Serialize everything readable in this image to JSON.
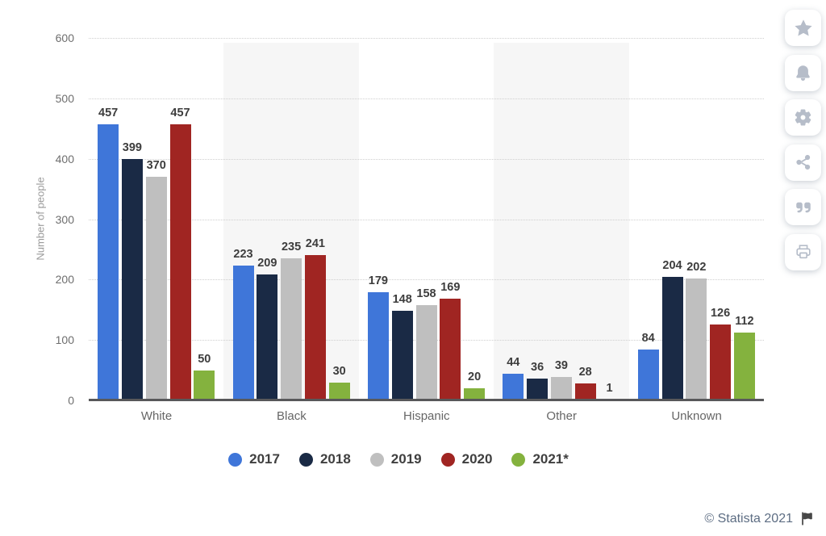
{
  "chart_data": {
    "type": "bar",
    "categories": [
      "White",
      "Black",
      "Hispanic",
      "Other",
      "Unknown"
    ],
    "series": [
      {
        "name": "2017",
        "color": "#3f76d9",
        "values": [
          457,
          223,
          179,
          44,
          84
        ]
      },
      {
        "name": "2018",
        "color": "#1a2a45",
        "values": [
          399,
          209,
          148,
          36,
          204
        ]
      },
      {
        "name": "2019",
        "color": "#bfbfbf",
        "values": [
          370,
          235,
          158,
          39,
          202
        ]
      },
      {
        "name": "2020",
        "color": "#a02522",
        "values": [
          457,
          241,
          169,
          28,
          126
        ]
      },
      {
        "name": "2021*",
        "color": "#84b23e",
        "values": [
          50,
          30,
          20,
          1,
          112
        ]
      }
    ],
    "title": "",
    "xlabel": "",
    "ylabel": "Number of people",
    "ylim": [
      0,
      600
    ],
    "yticks": [
      0,
      100,
      200,
      300,
      400,
      500,
      600
    ],
    "grid": "dotted horizontal",
    "legend_position": "bottom"
  },
  "footer": {
    "copyright": "© Statista 2021"
  },
  "sidebar": {
    "icons": [
      "star",
      "bell",
      "gear",
      "share",
      "quote",
      "print"
    ]
  }
}
